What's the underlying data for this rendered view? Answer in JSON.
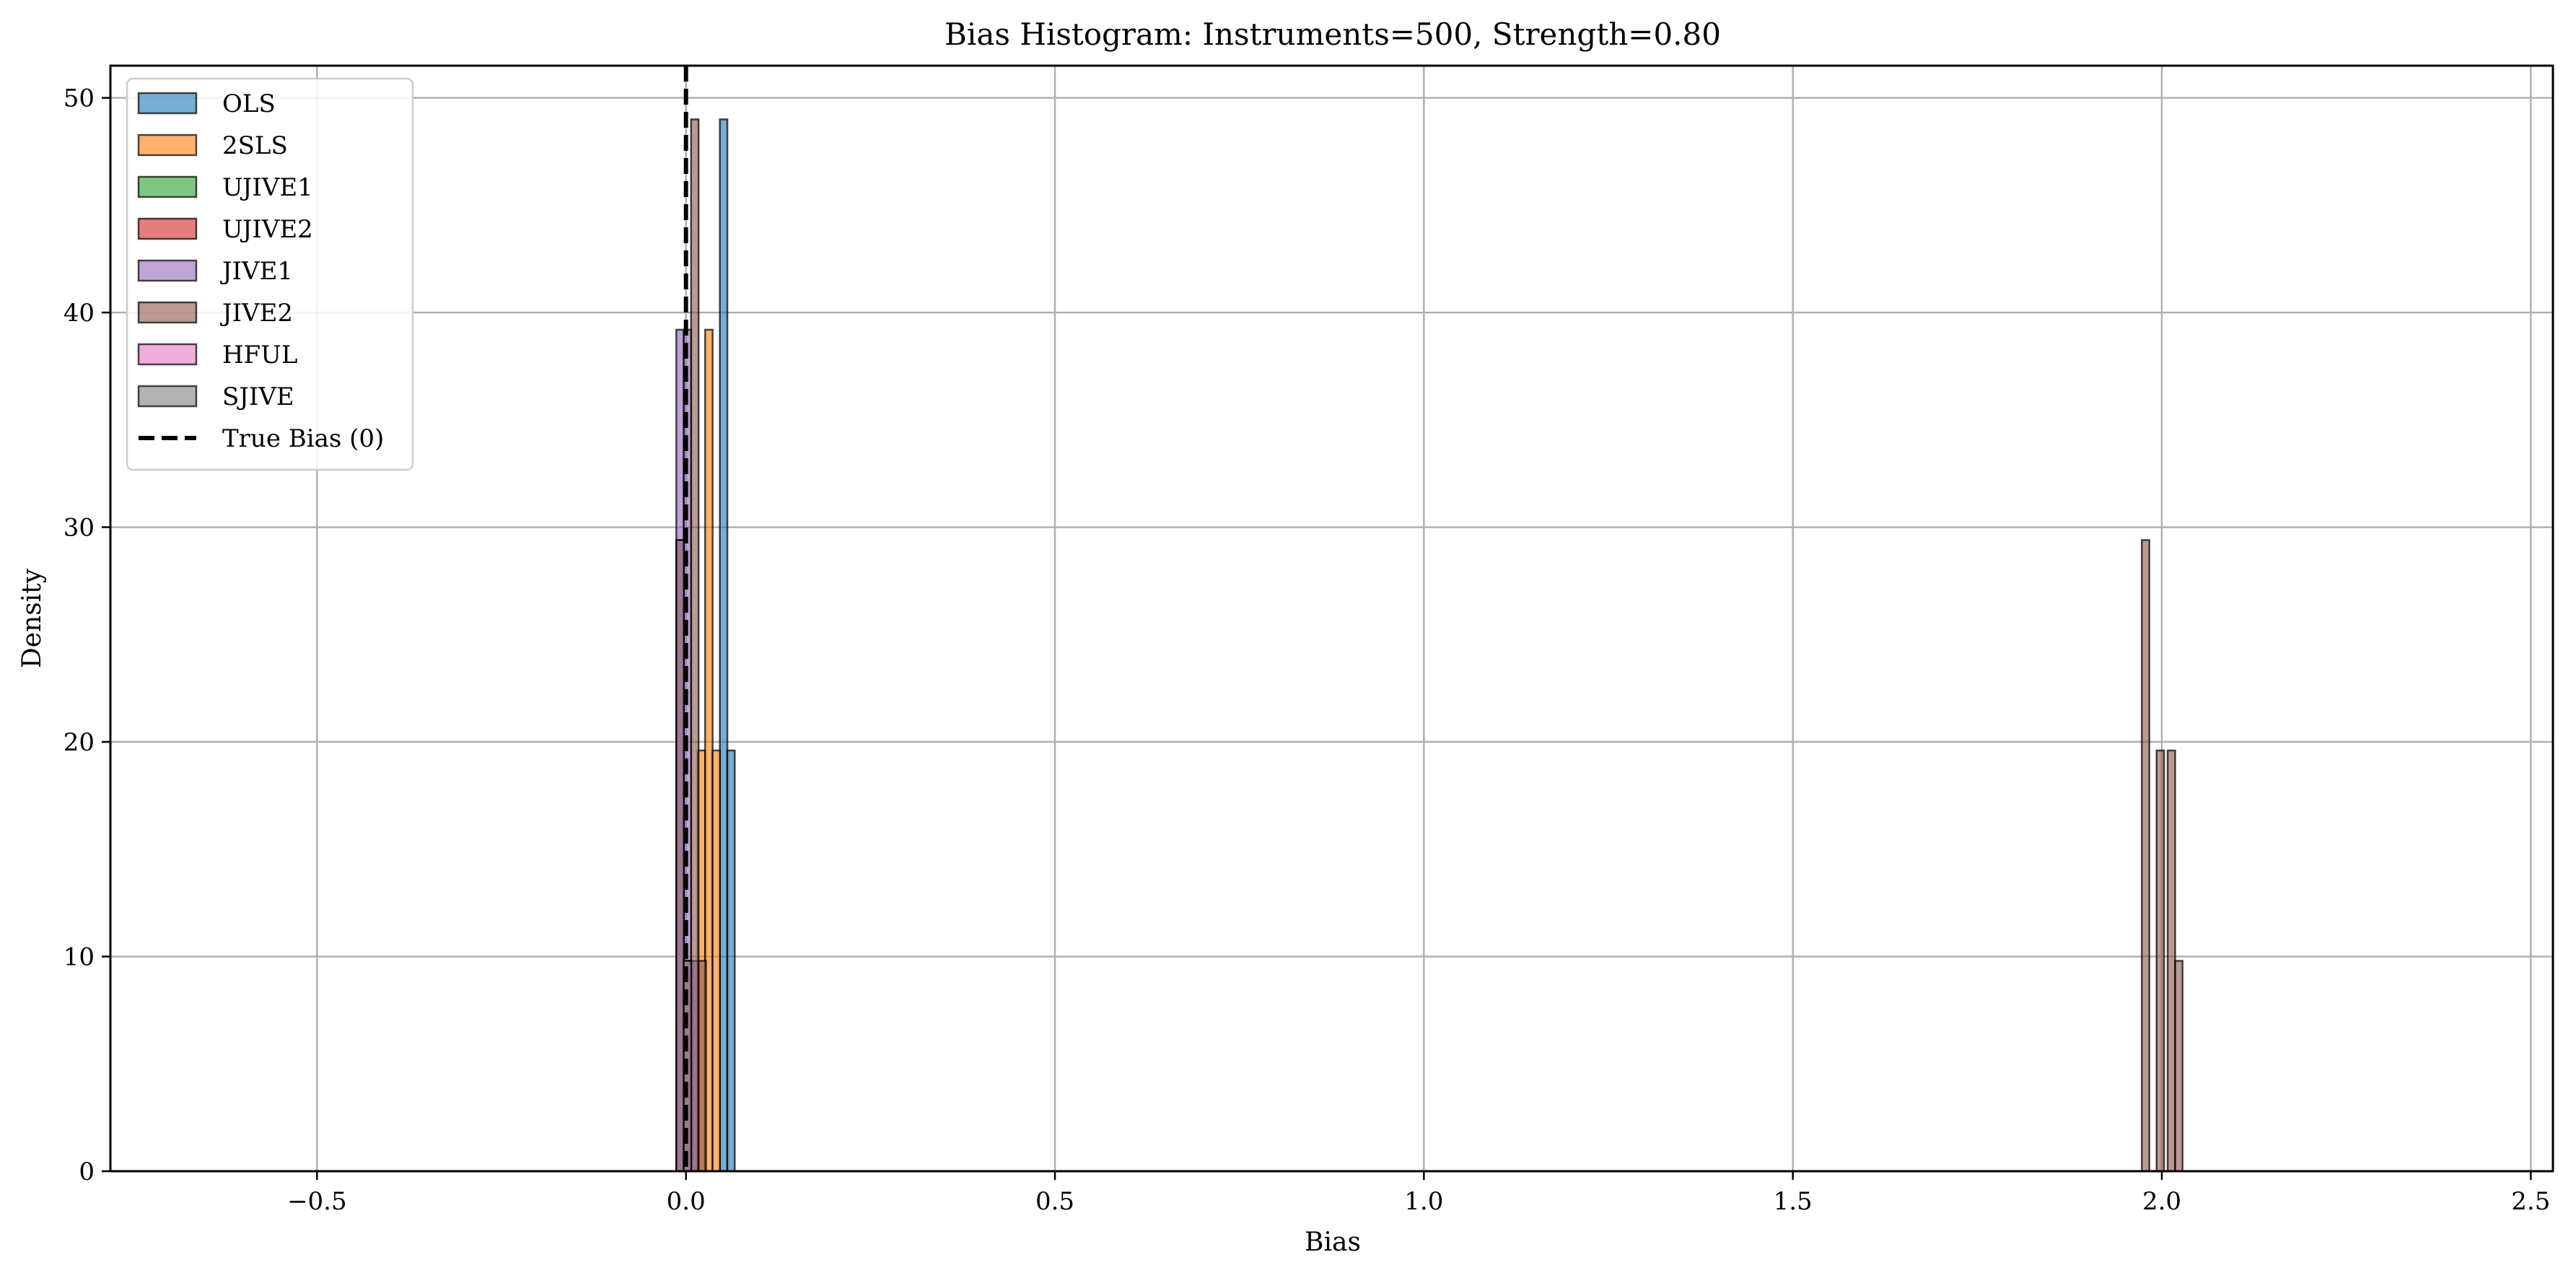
{
  "chart_data": {
    "type": "bar",
    "title": "Bias Histogram: Instruments=500, Strength=0.80",
    "xlabel": "Bias",
    "ylabel": "Density",
    "xlim": [
      -0.78,
      2.53
    ],
    "ylim": [
      0,
      51.5
    ],
    "xticks": [
      -0.5,
      0.0,
      0.5,
      1.0,
      1.5,
      2.0,
      2.5
    ],
    "xtick_labels": [
      "−0.5",
      "0.0",
      "0.5",
      "1.0",
      "1.5",
      "2.0",
      "2.5"
    ],
    "yticks": [
      0,
      10,
      20,
      30,
      40,
      50
    ],
    "ytick_labels": [
      "0",
      "10",
      "20",
      "30",
      "40",
      "50"
    ],
    "grid": true,
    "legend_position": "upper-left",
    "bin_width": 0.0102,
    "series": [
      {
        "name": "OLS",
        "color": "#1f77b4",
        "bins": [
          {
            "x": 0.051,
            "height": 49
          },
          {
            "x": 0.061,
            "height": 19.6
          }
        ]
      },
      {
        "name": "2SLS",
        "color": "#ff7f0e",
        "bins": [
          {
            "x": 0.021,
            "height": 19.6
          },
          {
            "x": 0.031,
            "height": 39.2
          },
          {
            "x": 0.041,
            "height": 19.6
          }
        ]
      },
      {
        "name": "UJIVE1",
        "color": "#2ca02c",
        "bins": [
          {
            "x": -0.008,
            "height": 29.4
          },
          {
            "x": 0.002,
            "height": 9.8
          }
        ]
      },
      {
        "name": "UJIVE2",
        "color": "#d62728",
        "bins": [
          {
            "x": -0.008,
            "height": 29.4
          },
          {
            "x": 0.002,
            "height": 9.8
          }
        ]
      },
      {
        "name": "JIVE1",
        "color": "#9467bd",
        "bins": [
          {
            "x": -0.008,
            "height": 39.2
          },
          {
            "x": 0.002,
            "height": 39.2
          },
          {
            "x": 0.012,
            "height": 9.8
          }
        ]
      },
      {
        "name": "JIVE2",
        "color": "#8c564b",
        "bins": [
          {
            "x": 0.012,
            "height": 49
          },
          {
            "x": 0.022,
            "height": 9.8
          },
          {
            "x": 1.978,
            "height": 29.4
          },
          {
            "x": 1.998,
            "height": 19.6
          },
          {
            "x": 2.013,
            "height": 19.6
          },
          {
            "x": 2.023,
            "height": 9.8
          }
        ]
      },
      {
        "name": "HFUL",
        "color": "#e377c2",
        "bins": [
          {
            "x": -0.008,
            "height": 29.4
          },
          {
            "x": 0.002,
            "height": 9.8
          }
        ]
      },
      {
        "name": "SJIVE",
        "color": "#7f7f7f",
        "bins": [
          {
            "x": -0.008,
            "height": 29.4
          },
          {
            "x": 0.002,
            "height": 9.8
          }
        ]
      }
    ],
    "reference_line": {
      "name": "True Bias (0)",
      "x": 0,
      "style": "dashed",
      "color": "#000000"
    }
  }
}
